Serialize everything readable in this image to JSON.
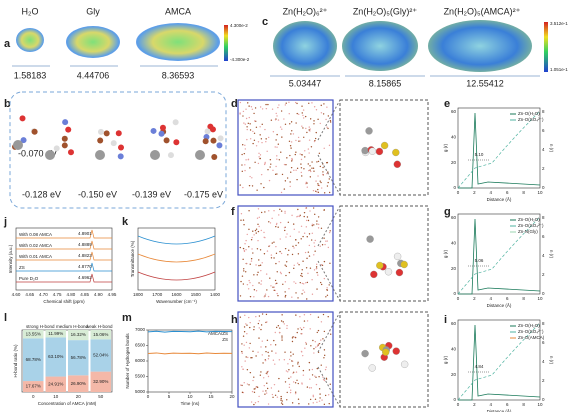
{
  "a": {
    "label": "a",
    "molecules": [
      "H₂O",
      "Gly",
      "AMCA"
    ],
    "values": [
      "1.58183",
      "4.44706",
      "8.36593"
    ],
    "colorbar": [
      "4.300e-2",
      "-4.300e-2"
    ]
  },
  "b": {
    "label": "b",
    "energies": [
      "-0.070 eV",
      "-0.128 eV",
      "-0.150 eV",
      "-0.139 eV",
      "-0.175 eV"
    ]
  },
  "c": {
    "label": "c",
    "molecules": [
      "Zn(H₂O)₆²⁺",
      "Zn(H₂O)₅(Gly)²⁺",
      "Zn(H₂O)₅(AMCA)²⁺"
    ],
    "values": [
      "5.03447",
      "8.15865",
      "12.55412"
    ],
    "colorbar": [
      "3.512e-1",
      "1.051e-1"
    ]
  },
  "d": {
    "label": "d"
  },
  "f": {
    "label": "f"
  },
  "h": {
    "label": "h"
  },
  "e": {
    "label": "e",
    "legend": [
      "Zn-O(H₂O)",
      "Zn-O(SO₄²⁻)"
    ],
    "annotation": "5.10",
    "ylabel": "g (r)",
    "y2label": "n (r)",
    "xlabel": "Distance (Å)",
    "xticks": [
      "0",
      "2",
      "4",
      "6",
      "8",
      "10"
    ],
    "yticks": [
      "0",
      "20",
      "40",
      "60"
    ],
    "y2ticks": [
      "0",
      "2",
      "4",
      "6",
      "8"
    ]
  },
  "g": {
    "label": "g",
    "legend": [
      "Zn-O(H₂O)",
      "Zn-O(SO₄²⁻)",
      "Zn-N(Gly)"
    ],
    "annotation": "5.06",
    "ylabel": "g (r)",
    "y2label": "n (r)",
    "xlabel": "Distance (Å)",
    "xticks": [
      "0",
      "2",
      "4",
      "6",
      "8",
      "10"
    ],
    "yticks": [
      "0",
      "20",
      "40",
      "60"
    ],
    "y2ticks": [
      "0",
      "2",
      "4",
      "6",
      "8"
    ]
  },
  "i": {
    "label": "i",
    "legend": [
      "Zn-O(H₂O)",
      "Zn-O(SO₄²⁻)",
      "Zn-O(AMCA)"
    ],
    "annotation": "4.84",
    "ylabel": "g (r)",
    "y2label": "n (r)",
    "xlabel": "Distance (Å)",
    "xticks": [
      "0",
      "2",
      "4",
      "6",
      "8",
      "10"
    ],
    "yticks": [
      "0",
      "20",
      "40",
      "60"
    ],
    "y2ticks": [
      "0",
      "2",
      "4",
      "6",
      "8"
    ]
  },
  "j": {
    "label": "j",
    "legend": [
      "With 0.08 AMCA",
      "With 0.02 AMCA",
      "With 0.01 AMCA",
      "ZS",
      "Pure D₂O"
    ],
    "peaks": [
      "4.8901",
      "4.8889",
      "4.8823",
      "4.8770",
      "4.6962"
    ],
    "ylabel": "Intensity (a.u.)",
    "xlabel": "Chemical shift (ppm)",
    "xticks": [
      "4.60",
      "4.65",
      "4.70",
      "4.75",
      "4.80",
      "4.85",
      "4.90",
      "4.95"
    ]
  },
  "k": {
    "label": "k",
    "ylabel": "Transmittance (%)",
    "xlabel": "Wavenumber (cm⁻¹)",
    "xticks": [
      "1800",
      "1700",
      "1600",
      "1500",
      "1400"
    ]
  },
  "l": {
    "label": "l",
    "ylabel": "H-bond ratio (%)",
    "xlabel": "Concentration of AMCA (mM)",
    "categories": [
      "0",
      "10",
      "20",
      "50"
    ],
    "legend": [
      "strong H-bond",
      "medium H-bond",
      "weak H-bond"
    ],
    "colors": [
      "#f4b8a8",
      "#a9d2e8",
      "#d8ecd6"
    ],
    "values": [
      [
        17.67,
        24.91,
        26.9,
        32.9
      ],
      [
        68.78,
        63.1,
        56.78,
        52.04
      ],
      [
        13.55,
        11.99,
        16.32,
        15.06
      ]
    ],
    "value_labels": [
      [
        "17.67%",
        "24.91%",
        "26.90%",
        "32.90%"
      ],
      [
        "68.78%",
        "63.10%",
        "56.78%",
        "52.04%"
      ],
      [
        "13.55%",
        "11.99%",
        "16.32%",
        "15.06%"
      ]
    ],
    "ylim": [
      0,
      100
    ]
  },
  "m": {
    "label": "m",
    "ylabel": "Number of Hydrogen bonds",
    "xlabel": "Time (ns)",
    "x": [
      0,
      2,
      4,
      6,
      8,
      10,
      12,
      14,
      16,
      18,
      20
    ],
    "xticks": [
      0,
      5,
      10,
      15,
      20
    ],
    "ylim": [
      5000,
      7000
    ],
    "yticks": [
      5000,
      5500,
      6000,
      6500,
      7000
    ],
    "series": [
      {
        "name": "AMCA/ZS",
        "color": "#e8893a",
        "values": [
          6240,
          6260,
          6230,
          6255,
          6245,
          6250,
          6235,
          6260,
          6240,
          6250,
          6245
        ]
      },
      {
        "name": "ZS",
        "color": "#2a8fd0",
        "values": [
          6940,
          6960,
          6930,
          6955,
          6950,
          6945,
          6965,
          6940,
          6955,
          6950,
          6948
        ]
      }
    ]
  }
}
